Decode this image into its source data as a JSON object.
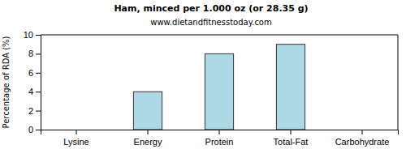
{
  "chart_data": {
    "type": "bar",
    "title": "Ham, minced per 1.000 oz (or 28.35 g)",
    "subtitle": "www.dietandfitnesstoday.com",
    "y_label": "Percentage of RDA (%)",
    "categories": [
      "Lysine",
      "Energy",
      "Protein",
      "Total-Fat",
      "Carbohydrate"
    ],
    "values": [
      0,
      4,
      8,
      9,
      0
    ],
    "color": "#add8e6",
    "ylim": [
      0,
      10
    ],
    "yticks": [
      0,
      2,
      4,
      6,
      8,
      10
    ],
    "grid": false
  }
}
